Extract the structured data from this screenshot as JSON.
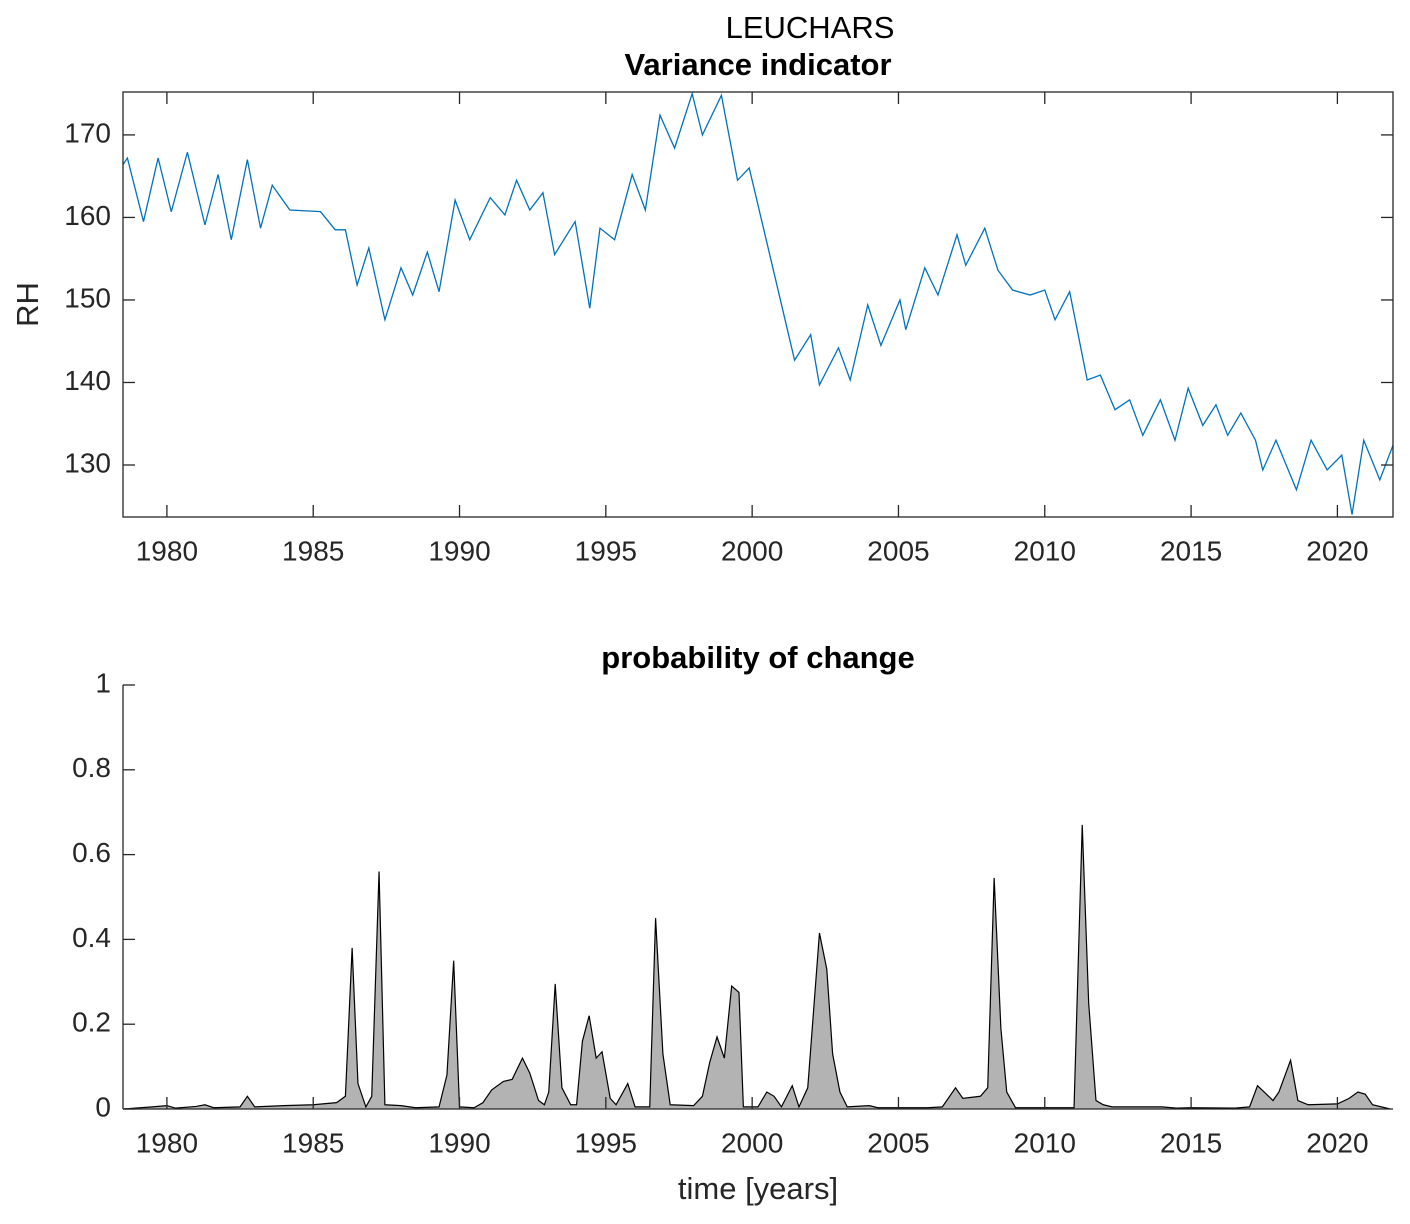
{
  "title": "LEUCHARS",
  "chart_data": [
    {
      "type": "line",
      "title": "Variance indicator",
      "ylabel": "RH",
      "color": "#0072bd",
      "x": [
        1978.5,
        1978.65,
        1979.2,
        1979.7,
        1980.15,
        1980.7,
        1981.3,
        1981.75,
        1982.2,
        1982.75,
        1983.2,
        1983.6,
        1984.2,
        1985.25,
        1985.75,
        1986.1,
        1986.5,
        1986.9,
        1987.45,
        1988.0,
        1988.4,
        1988.9,
        1989.3,
        1989.85,
        1990.35,
        1991.05,
        1991.55,
        1991.95,
        1992.4,
        1992.85,
        1993.25,
        1993.95,
        1994.45,
        1994.8,
        1995.3,
        1995.9,
        1996.35,
        1996.85,
        1997.35,
        1997.95,
        1998.3,
        1998.95,
        1999.5,
        1999.9,
        2000.6,
        2001.45,
        2002.0,
        2002.3,
        2002.95,
        2003.35,
        2003.95,
        2004.4,
        2005.05,
        2005.25,
        2005.9,
        2006.35,
        2007.0,
        2007.3,
        2007.95,
        2008.4,
        2008.9,
        2009.5,
        2010.0,
        2010.35,
        2010.85,
        2011.45,
        2011.9,
        2012.4,
        2012.9,
        2013.35,
        2013.95,
        2014.45,
        2014.9,
        2015.4,
        2015.85,
        2016.25,
        2016.7,
        2017.2,
        2017.45,
        2017.9,
        2018.6,
        2019.1,
        2019.65,
        2020.15,
        2020.5,
        2020.9,
        2021.45,
        2021.9
      ],
      "values": [
        166.4,
        167.2,
        159.5,
        167.2,
        160.7,
        167.9,
        159.1,
        165.2,
        157.3,
        167,
        158.7,
        163.9,
        160.9,
        160.7,
        158.5,
        158.5,
        151.8,
        156.3,
        147.6,
        153.9,
        150.6,
        155.8,
        151,
        162.1,
        157.3,
        162.4,
        160.3,
        164.5,
        160.9,
        163,
        155.5,
        159.5,
        149,
        158.7,
        157.3,
        165.2,
        160.9,
        172.4,
        168.4,
        175,
        170,
        174.8,
        164.5,
        166,
        155.5,
        142.7,
        145.8,
        139.7,
        144.2,
        140.3,
        149.4,
        144.5,
        150,
        146.4,
        153.9,
        150.6,
        157.9,
        154.2,
        158.7,
        153.6,
        151.2,
        150.6,
        151.2,
        147.6,
        151,
        140.3,
        140.9,
        136.7,
        137.9,
        133.6,
        137.9,
        133,
        139.3,
        134.8,
        137.3,
        133.6,
        136.3,
        133,
        129.4,
        133,
        127,
        133,
        129.4,
        131.2,
        124,
        133,
        128.2,
        132.4
      ],
      "xlim": [
        1978.5,
        2021.9
      ],
      "ylim": [
        123.7,
        175.2
      ],
      "xticks": [
        1980,
        1985,
        1990,
        1995,
        2000,
        2005,
        2010,
        2015,
        2020
      ],
      "yticks": [
        130,
        140,
        150,
        160,
        170
      ],
      "box": true
    },
    {
      "type": "area",
      "title": "probability of change",
      "xlabel": "time [years]",
      "color": "#b3b3b3",
      "line_color": "#000000",
      "x": [
        1978.5,
        1979.5,
        1980.0,
        1980.3,
        1981.0,
        1981.3,
        1981.6,
        1982.5,
        1982.75,
        1983.0,
        1984.0,
        1985.0,
        1985.8,
        1986.1,
        1986.33,
        1986.53,
        1986.8,
        1987.0,
        1987.25,
        1987.45,
        1988.0,
        1988.5,
        1989.3,
        1989.57,
        1989.8,
        1990.0,
        1990.5,
        1990.8,
        1991.1,
        1991.5,
        1991.8,
        1992.15,
        1992.4,
        1992.7,
        1992.9,
        1993.05,
        1993.27,
        1993.5,
        1993.8,
        1994.0,
        1994.2,
        1994.43,
        1994.67,
        1994.87,
        1995.15,
        1995.35,
        1995.75,
        1996.0,
        1996.5,
        1996.7,
        1996.95,
        1997.2,
        1998.0,
        1998.3,
        1998.55,
        1998.8,
        1999.05,
        1999.3,
        1999.55,
        1999.7,
        2000.2,
        2000.5,
        2000.75,
        2001.0,
        2001.37,
        2001.6,
        2001.9,
        2002.3,
        2002.55,
        2002.75,
        2003.0,
        2003.25,
        2004.0,
        2004.3,
        2006.0,
        2006.5,
        2006.95,
        2007.2,
        2007.8,
        2008.05,
        2008.27,
        2008.5,
        2008.7,
        2009.0,
        2010.5,
        2011.0,
        2011.28,
        2011.5,
        2011.75,
        2012.0,
        2012.3,
        2014.0,
        2014.5,
        2015.0,
        2016.5,
        2017.0,
        2017.27,
        2017.5,
        2017.8,
        2018.0,
        2018.4,
        2018.65,
        2019.0,
        2020.0,
        2020.4,
        2020.7,
        2020.95,
        2021.2,
        2021.8
      ],
      "values": [
        0,
        0.005,
        0.008,
        0.002,
        0.006,
        0.01,
        0.003,
        0.005,
        0.03,
        0.005,
        0.008,
        0.01,
        0.015,
        0.03,
        0.38,
        0.06,
        0.005,
        0.03,
        0.56,
        0.01,
        0.008,
        0.003,
        0.005,
        0.08,
        0.35,
        0.005,
        0.003,
        0.015,
        0.045,
        0.065,
        0.07,
        0.12,
        0.085,
        0.02,
        0.01,
        0.04,
        0.295,
        0.05,
        0.01,
        0.01,
        0.16,
        0.22,
        0.12,
        0.135,
        0.025,
        0.01,
        0.06,
        0.005,
        0.005,
        0.45,
        0.13,
        0.01,
        0.008,
        0.03,
        0.11,
        0.17,
        0.12,
        0.29,
        0.275,
        0.005,
        0.005,
        0.04,
        0.03,
        0.005,
        0.055,
        0.005,
        0.05,
        0.415,
        0.33,
        0.13,
        0.04,
        0.005,
        0.008,
        0.003,
        0.003,
        0.005,
        0.05,
        0.025,
        0.03,
        0.05,
        0.545,
        0.19,
        0.04,
        0.003,
        0.003,
        0.003,
        0.67,
        0.25,
        0.02,
        0.01,
        0.005,
        0.005,
        0.002,
        0.003,
        0.002,
        0.005,
        0.055,
        0.04,
        0.02,
        0.04,
        0.115,
        0.02,
        0.01,
        0.012,
        0.025,
        0.04,
        0.035,
        0.01,
        0
      ],
      "xlim": [
        1978.5,
        2021.9
      ],
      "ylim": [
        0,
        1
      ],
      "xticks": [
        1980,
        1985,
        1990,
        1995,
        2000,
        2005,
        2010,
        2015,
        2020
      ],
      "yticks": [
        0,
        0.2,
        0.4,
        0.6,
        0.8,
        1
      ],
      "box": false
    }
  ]
}
